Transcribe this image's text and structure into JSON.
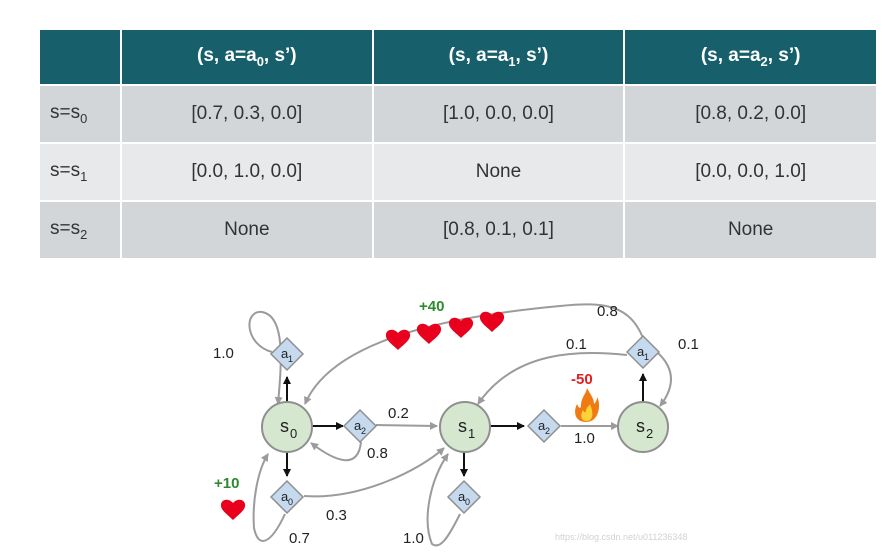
{
  "table": {
    "columns": [
      {
        "pre": "(s, a=a",
        "sub": "0",
        "post": ", s’)"
      },
      {
        "pre": "(s, a=a",
        "sub": "1",
        "post": ", s’)"
      },
      {
        "pre": "(s, a=a",
        "sub": "2",
        "post": ", s’)"
      }
    ],
    "rows": [
      {
        "head": {
          "pre": "s=s",
          "sub": "0"
        },
        "cells": [
          "[0.7, 0.3, 0.0]",
          "[1.0, 0.0, 0.0]",
          "[0.8, 0.2, 0.0]"
        ]
      },
      {
        "head": {
          "pre": "s=s",
          "sub": "1"
        },
        "cells": [
          "[0.0, 1.0, 0.0]",
          "None",
          "[0.0, 0.0, 1.0]"
        ]
      },
      {
        "head": {
          "pre": "s=s",
          "sub": "2"
        },
        "cells": [
          "None",
          "[0.8, 0.1, 0.1]",
          "None"
        ]
      }
    ]
  },
  "diagram": {
    "states": {
      "s0": {
        "letter": "s",
        "sub": "0"
      },
      "s1": {
        "letter": "s",
        "sub": "1"
      },
      "s2": {
        "letter": "s",
        "sub": "2"
      }
    },
    "actions": {
      "s0_a0": {
        "letter": "a",
        "sub": "0"
      },
      "s0_a1": {
        "letter": "a",
        "sub": "1"
      },
      "s0_a2": {
        "letter": "a",
        "sub": "2"
      },
      "s1_a0": {
        "letter": "a",
        "sub": "0"
      },
      "s1_a2": {
        "letter": "a",
        "sub": "2"
      },
      "s2_a1": {
        "letter": "a",
        "sub": "1"
      }
    },
    "probabilities": {
      "s0_a1_self": "1.0",
      "s0_a2_to_s1": "0.2",
      "s0_a2_to_s0": "0.8",
      "s0_a0_self": "0.7",
      "s0_a0_to_s1": "0.3",
      "s1_a0_self": "1.0",
      "s1_a2_to_s2": "1.0",
      "s2_a1_to_s0": "0.8",
      "s2_a1_to_s1": "0.1",
      "s2_a1_self": "0.1"
    },
    "rewards": {
      "plus40": "+40",
      "plus10": "+10",
      "minus50": "-50"
    },
    "watermark": "https://blog.csdn.net/u011236348"
  },
  "colors": {
    "header_bg": "#17606b",
    "row_odd": "#d3d6d8",
    "row_even": "#e8e9ea",
    "state_fill": "#d5e8cf",
    "action_fill": "#c5d9ef",
    "reward_positive": "#2e8a2e",
    "reward_negative": "#e02020",
    "heart": "#e8001c"
  }
}
